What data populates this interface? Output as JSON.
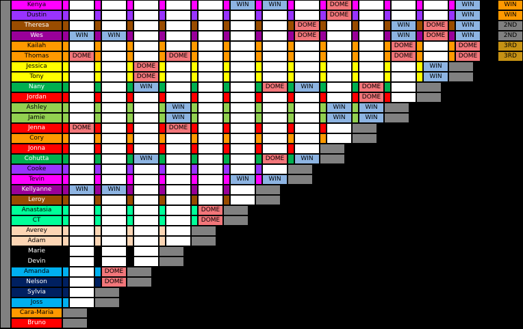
{
  "labels": {
    "win": "WIN",
    "dome": "DOME"
  },
  "players": [
    {
      "name": "Kenya",
      "color": "#ff00ff",
      "text": "#000000",
      "place": "WIN",
      "placeColor": "#ff9900"
    },
    {
      "name": "Dustin",
      "color": "#9933ff",
      "text": "#000000",
      "place": "WIN",
      "placeColor": "#ff9900"
    },
    {
      "name": "Theresa",
      "color": "#994c00",
      "text": "#ffffff",
      "place": "2ND",
      "placeColor": "#808080"
    },
    {
      "name": "Wes",
      "color": "#990099",
      "text": "#ffffff",
      "place": "2ND",
      "placeColor": "#808080"
    },
    {
      "name": "Kailah",
      "color": "#ff9900",
      "text": "#000000",
      "place": "3RD",
      "placeColor": "#c69214"
    },
    {
      "name": "Thomas",
      "color": "#ff9900",
      "text": "#000000",
      "place": "3RD",
      "placeColor": "#c69214"
    },
    {
      "name": "Jessica",
      "color": "#ffff00",
      "text": "#000000"
    },
    {
      "name": "Tony",
      "color": "#ffff00",
      "text": "#000000"
    },
    {
      "name": "Nany",
      "color": "#00b050",
      "text": "#ffffff"
    },
    {
      "name": "Jordan",
      "color": "#ff0000",
      "text": "#ffffff"
    },
    {
      "name": "Ashley",
      "color": "#92d050",
      "text": "#000000"
    },
    {
      "name": "Jamie",
      "color": "#92d050",
      "text": "#000000"
    },
    {
      "name": "Jenna",
      "color": "#ff0000",
      "text": "#ffffff"
    },
    {
      "name": "Cory",
      "color": "#ff9900",
      "text": "#000000"
    },
    {
      "name": "Jonna",
      "color": "#ff0000",
      "text": "#ffffff"
    },
    {
      "name": "Cohutta",
      "color": "#00b050",
      "text": "#ffffff"
    },
    {
      "name": "Cooke",
      "color": "#9933ff",
      "text": "#000000"
    },
    {
      "name": "Tevin",
      "color": "#ff00ff",
      "text": "#000000"
    },
    {
      "name": "Kellyanne",
      "color": "#990099",
      "text": "#ffffff"
    },
    {
      "name": "Leroy",
      "color": "#994c00",
      "text": "#ffffff"
    },
    {
      "name": "Anastasia",
      "color": "#00ff99",
      "text": "#000000"
    },
    {
      "name": "CT",
      "color": "#00ff99",
      "text": "#000000"
    },
    {
      "name": "Averey",
      "color": "#fcd5b4",
      "text": "#000000"
    },
    {
      "name": "Adam",
      "color": "#fcd5b4",
      "text": "#000000"
    },
    {
      "name": "Marie",
      "color": "#000000",
      "text": "#ffffff"
    },
    {
      "name": "Devin",
      "color": "#000000",
      "text": "#ffffff"
    },
    {
      "name": "Amanda",
      "color": "#00b0f0",
      "text": "#000000"
    },
    {
      "name": "Nelson",
      "color": "#002060",
      "text": "#ffffff"
    },
    {
      "name": "Sylvia",
      "color": "#002060",
      "text": "#ffffff"
    },
    {
      "name": "Joss",
      "color": "#00b0f0",
      "text": "#000000"
    },
    {
      "name": "Cara-Maria",
      "color": "#ff9900",
      "text": "#000000"
    },
    {
      "name": "Bruno",
      "color": "#ff0000",
      "text": "#ffffff"
    }
  ],
  "stripColors": [
    "#ff0000",
    "#9933ff",
    "#ff00ff",
    "#ff9900",
    "#ff00ff",
    "#9933ff",
    "#ff9900",
    "#ff0000",
    "#ff00ff",
    "#ff00ff",
    "#ff9900",
    "#ff00ff",
    "#ff00ff"
  ],
  "results": [
    {
      "row": 0,
      "col": 5,
      "value": "win"
    },
    {
      "row": 0,
      "col": 6,
      "value": "win"
    },
    {
      "row": 0,
      "col": 8,
      "value": "dome"
    },
    {
      "row": 0,
      "col": 12,
      "value": "win"
    },
    {
      "row": 0,
      "col": 13,
      "value": "dome"
    },
    {
      "row": 1,
      "col": 8,
      "value": "dome"
    },
    {
      "row": 1,
      "col": 12,
      "value": "win"
    },
    {
      "row": 1,
      "col": 13,
      "value": "dome"
    },
    {
      "row": 2,
      "col": 7,
      "value": "dome"
    },
    {
      "row": 2,
      "col": 10,
      "value": "win"
    },
    {
      "row": 2,
      "col": 11,
      "value": "dome"
    },
    {
      "row": 2,
      "col": 12,
      "value": "win"
    },
    {
      "row": 3,
      "col": 0,
      "value": "win"
    },
    {
      "row": 3,
      "col": 1,
      "value": "win"
    },
    {
      "row": 3,
      "col": 7,
      "value": "dome"
    },
    {
      "row": 3,
      "col": 10,
      "value": "win"
    },
    {
      "row": 3,
      "col": 11,
      "value": "dome"
    },
    {
      "row": 3,
      "col": 12,
      "value": "win"
    },
    {
      "row": 4,
      "col": 10,
      "value": "dome"
    },
    {
      "row": 4,
      "col": 12,
      "value": "dome"
    },
    {
      "row": 5,
      "col": 0,
      "value": "dome"
    },
    {
      "row": 5,
      "col": 3,
      "value": "dome"
    },
    {
      "row": 5,
      "col": 10,
      "value": "dome"
    },
    {
      "row": 5,
      "col": 12,
      "value": "dome"
    },
    {
      "row": 6,
      "col": 2,
      "value": "dome"
    },
    {
      "row": 6,
      "col": 11,
      "value": "win"
    },
    {
      "row": 7,
      "col": 2,
      "value": "dome"
    },
    {
      "row": 7,
      "col": 11,
      "value": "win"
    },
    {
      "row": 8,
      "col": 2,
      "value": "win"
    },
    {
      "row": 8,
      "col": 6,
      "value": "dome"
    },
    {
      "row": 8,
      "col": 7,
      "value": "win"
    },
    {
      "row": 8,
      "col": 9,
      "value": "dome"
    },
    {
      "row": 9,
      "col": 9,
      "value": "dome"
    },
    {
      "row": 10,
      "col": 3,
      "value": "win"
    },
    {
      "row": 10,
      "col": 8,
      "value": "win"
    },
    {
      "row": 10,
      "col": 9,
      "value": "win"
    },
    {
      "row": 11,
      "col": 3,
      "value": "win"
    },
    {
      "row": 11,
      "col": 8,
      "value": "win"
    },
    {
      "row": 11,
      "col": 9,
      "value": "win"
    },
    {
      "row": 12,
      "col": 0,
      "value": "dome"
    },
    {
      "row": 12,
      "col": 3,
      "value": "dome"
    },
    {
      "row": 15,
      "col": 2,
      "value": "win"
    },
    {
      "row": 15,
      "col": 6,
      "value": "dome"
    },
    {
      "row": 15,
      "col": 7,
      "value": "win"
    },
    {
      "row": 17,
      "col": 5,
      "value": "win"
    },
    {
      "row": 17,
      "col": 6,
      "value": "win"
    },
    {
      "row": 18,
      "col": 0,
      "value": "win"
    },
    {
      "row": 18,
      "col": 1,
      "value": "win"
    },
    {
      "row": 20,
      "col": 4,
      "value": "dome"
    },
    {
      "row": 21,
      "col": 4,
      "value": "dome"
    },
    {
      "row": 26,
      "col": 1,
      "value": "dome"
    },
    {
      "row": 27,
      "col": 1,
      "value": "dome"
    }
  ]
}
